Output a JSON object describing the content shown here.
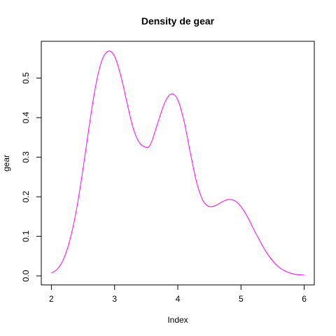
{
  "chart_data": {
    "type": "line",
    "title": "Density de  gear",
    "xlabel": "Index",
    "ylabel": "gear",
    "xlim": [
      2,
      6
    ],
    "ylim": [
      0,
      0.57
    ],
    "x_ticks": [
      2,
      3,
      4,
      5,
      6
    ],
    "y_ticks": [
      0.0,
      0.1,
      0.2,
      0.3,
      0.4,
      0.5
    ],
    "x_tick_labels": [
      "2",
      "3",
      "4",
      "5",
      "6"
    ],
    "y_tick_labels": [
      "0.0",
      "0.1",
      "0.2",
      "0.3",
      "0.4",
      "0.5"
    ],
    "grid": false,
    "line_color": "#ff00ff",
    "series": [
      {
        "x": [
          2.0,
          2.1,
          2.2,
          2.3,
          2.4,
          2.5,
          2.6,
          2.7,
          2.8,
          2.9,
          3.0,
          3.1,
          3.2,
          3.3,
          3.4,
          3.5,
          3.55,
          3.6,
          3.7,
          3.8,
          3.9,
          4.0,
          4.1,
          4.2,
          4.3,
          4.4,
          4.5,
          4.6,
          4.7,
          4.8,
          4.9,
          5.0,
          5.1,
          5.2,
          5.3,
          5.4,
          5.5,
          5.6,
          5.7,
          5.8,
          5.9,
          6.0
        ],
        "y": [
          0.007,
          0.018,
          0.045,
          0.095,
          0.17,
          0.27,
          0.38,
          0.48,
          0.545,
          0.568,
          0.555,
          0.505,
          0.435,
          0.37,
          0.335,
          0.325,
          0.328,
          0.345,
          0.395,
          0.44,
          0.46,
          0.445,
          0.39,
          0.31,
          0.235,
          0.19,
          0.175,
          0.178,
          0.187,
          0.193,
          0.19,
          0.175,
          0.15,
          0.118,
          0.088,
          0.06,
          0.038,
          0.022,
          0.012,
          0.006,
          0.003,
          0.002
        ]
      }
    ]
  }
}
